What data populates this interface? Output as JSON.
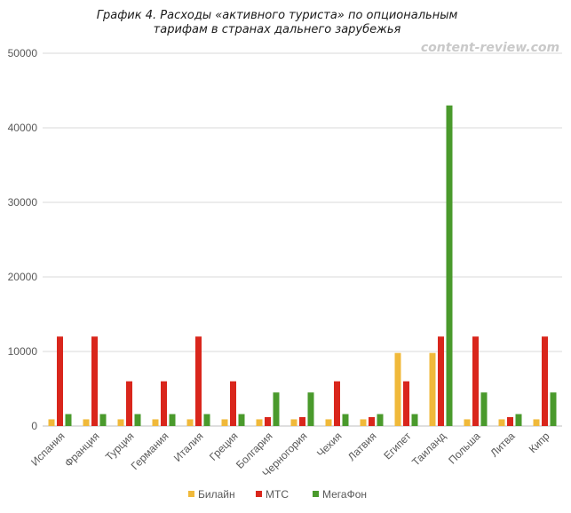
{
  "chart_data": {
    "type": "bar",
    "title": "График 4. Расходы «активного туриста» по опциональным тарифам в странах дальнего зарубежья",
    "title_lines": [
      "График 4. Расходы «активного туриста» по опциональным",
      "тарифам в странах дальнего зарубежья"
    ],
    "watermark": "content-review.com",
    "categories": [
      "Испания",
      "Франция",
      "Турция",
      "Германия",
      "Италия",
      "Греция",
      "Болгария",
      "Черногория",
      "Чехия",
      "Латвия",
      "Египет",
      "Таиланд",
      "Польша",
      "Литва",
      "Кипр"
    ],
    "series": [
      {
        "name": "Билайн",
        "color": "#f0b93a",
        "values": [
          900,
          900,
          900,
          900,
          900,
          900,
          900,
          900,
          900,
          900,
          9800,
          9800,
          900,
          900,
          900
        ]
      },
      {
        "name": "МТС",
        "color": "#d9261c",
        "values": [
          12000,
          12000,
          6000,
          6000,
          12000,
          6000,
          1200,
          1200,
          6000,
          1200,
          6000,
          12000,
          12000,
          1200,
          12000
        ]
      },
      {
        "name": "МегаФон",
        "color": "#4a9a2c",
        "values": [
          1600,
          1600,
          1600,
          1600,
          1600,
          1600,
          4500,
          4500,
          1600,
          1600,
          1600,
          43000,
          4500,
          1600,
          4500
        ]
      }
    ],
    "ylim": [
      0,
      50000
    ],
    "yticks": [
      0,
      10000,
      20000,
      30000,
      40000,
      50000
    ],
    "xlabel": "",
    "ylabel": "",
    "grid": true,
    "legend_position": "bottom-center"
  }
}
